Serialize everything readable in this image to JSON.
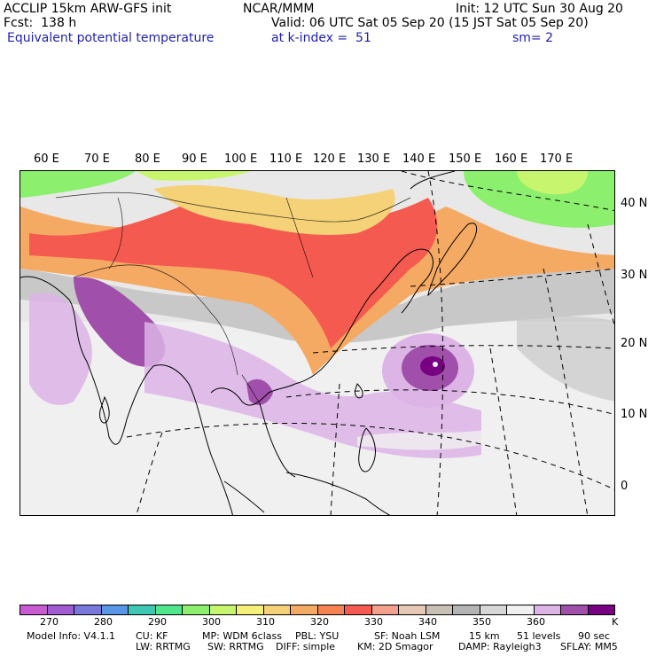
{
  "header": {
    "left_line1": "ACCLIP 15km ARW-GFS init",
    "center_line1": "NCAR/MMM",
    "right_line1": "Init: 12 UTC Sun 30 Aug 20",
    "left_line2": "Fcst:  138 h",
    "right_line2": "Valid: 06 UTC Sat 05 Sep 20 (15 JST Sat 05 Sep 20)",
    "field_name": "Equivalent potential temperature",
    "level_text": "at k-index =  51",
    "smooth_text": "sm= 2"
  },
  "map": {
    "lon_labels": [
      "60 E",
      "70 E",
      "80 E",
      "90 E",
      "100 E",
      "110 E",
      "120 E",
      "130 E",
      "140 E",
      "150 E",
      "160 E",
      "170 E"
    ],
    "lat_labels": [
      "40 N",
      "30 N",
      "20 N",
      "10 N",
      "0"
    ]
  },
  "colorbar": {
    "colors": [
      "#c85ad2",
      "#a05ad2",
      "#7878dc",
      "#5a96e6",
      "#3cc8b4",
      "#50e68c",
      "#8cf06e",
      "#c8f56e",
      "#f5f078",
      "#f5d278",
      "#f5aa64",
      "#f58250",
      "#f55a50",
      "#f5a08c",
      "#e6c8b4",
      "#c8c0b4",
      "#b4b4b4",
      "#d7d7d7",
      "#f0f0f0",
      "#dcb4e6",
      "#a050aa",
      "#780082"
    ],
    "labels": [
      "270",
      "280",
      "290",
      "300",
      "310",
      "320",
      "330",
      "340",
      "350",
      "360"
    ],
    "unit": "K"
  },
  "footer": {
    "line1": [
      "Model Info: V4.1.1",
      "CU: KF",
      "MP: WDM 6class",
      "PBL: YSU",
      "SF: Noah LSM",
      "15 km",
      "51 levels",
      "90 sec"
    ],
    "line2": [
      "LW: RRTMG",
      "SW: RRTMG",
      "DIFF: simple",
      "KM: 2D Smagor",
      "DAMP: Rayleigh3",
      "SFLAY: MM5"
    ]
  }
}
